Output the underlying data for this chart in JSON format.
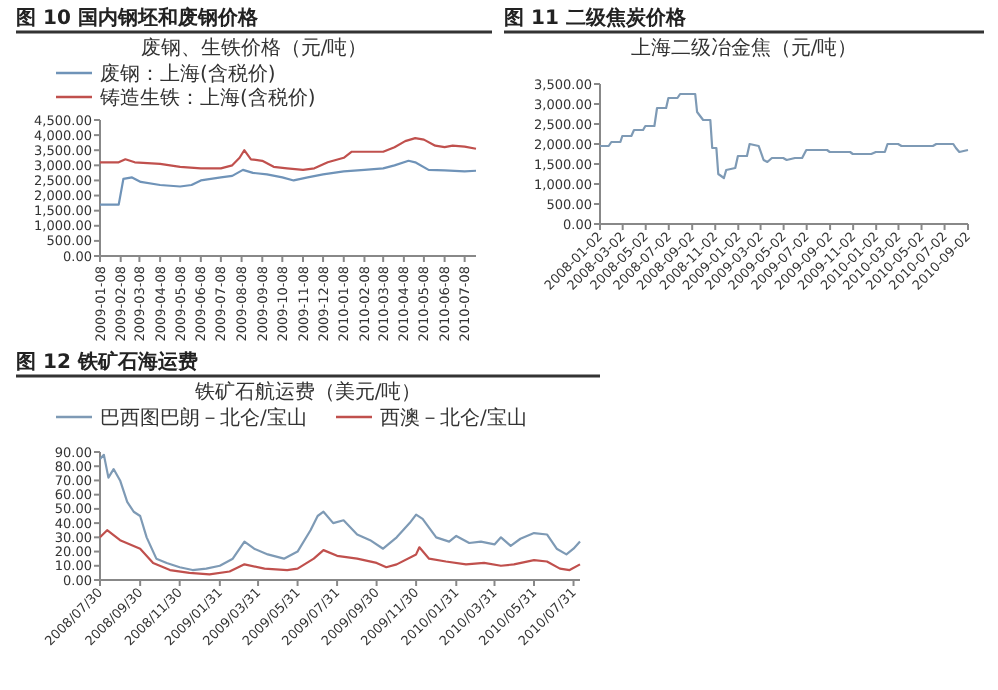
{
  "chart_data": [
    {
      "type": "line",
      "title": "图 10 国内钢坯和废钢价格",
      "subtitle": "废钢、生铁价格（元/吨）",
      "legend": "top",
      "grid": false,
      "xlim": [
        "2009-01-08",
        "2010-07-25"
      ],
      "xticks": [
        {
          "value": "2009-01-08",
          "label": "2009-01-08"
        },
        {
          "value": "2009-02-08",
          "label": "2009-02-08"
        },
        {
          "value": "2009-03-08",
          "label": "2009-03-08"
        },
        {
          "value": "2009-04-08",
          "label": "2009-04-08"
        },
        {
          "value": "2009-05-08",
          "label": "2009-05-08"
        },
        {
          "value": "2009-06-08",
          "label": "2009-06-08"
        },
        {
          "value": "2009-07-08",
          "label": "2009-07-08"
        },
        {
          "value": "2009-08-08",
          "label": "2009-08-08"
        },
        {
          "value": "2009-09-08",
          "label": "2009-09-08"
        },
        {
          "value": "2009-10-08",
          "label": "2009-10-08"
        },
        {
          "value": "2009-11-08",
          "label": "2009-11-08"
        },
        {
          "value": "2009-12-08",
          "label": "2009-12-08"
        },
        {
          "value": "2010-01-08",
          "label": "2010-01-08"
        },
        {
          "value": "2010-02-08",
          "label": "2010-02-08"
        },
        {
          "value": "2010-03-08",
          "label": "2010-03-08"
        },
        {
          "value": "2010-04-08",
          "label": "2010-04-08"
        },
        {
          "value": "2010-05-08",
          "label": "2010-05-08"
        },
        {
          "value": "2010-06-08",
          "label": "2010-06-08"
        },
        {
          "value": "2010-07-08",
          "label": "2010-07-08"
        }
      ],
      "ylim": [
        0,
        4500
      ],
      "yticks": [
        {
          "value": 0,
          "label": "0.00"
        },
        {
          "value": 500,
          "label": "500.00"
        },
        {
          "value": 1000,
          "label": "1,000.00"
        },
        {
          "value": 1500,
          "label": "1,500.00"
        },
        {
          "value": 2000,
          "label": "2,000.00"
        },
        {
          "value": 2500,
          "label": "2,500.00"
        },
        {
          "value": 3000,
          "label": "3,000.00"
        },
        {
          "value": 3500,
          "label": "3,500.00"
        },
        {
          "value": 4000,
          "label": "4,000.00"
        },
        {
          "value": 4500,
          "label": "4,500.00"
        }
      ],
      "series": [
        {
          "name": "废钢：上海(含税价)",
          "color": "#6f93b8",
          "x": [
            "2009-01-08",
            "2009-02-05",
            "2009-02-12",
            "2009-02-25",
            "2009-03-10",
            "2009-04-08",
            "2009-05-08",
            "2009-05-25",
            "2009-06-08",
            "2009-07-08",
            "2009-07-25",
            "2009-08-10",
            "2009-08-25",
            "2009-09-15",
            "2009-10-08",
            "2009-10-25",
            "2009-11-15",
            "2009-12-08",
            "2010-01-08",
            "2010-02-08",
            "2010-03-08",
            "2010-03-25",
            "2010-04-15",
            "2010-04-25",
            "2010-05-15",
            "2010-06-08",
            "2010-07-08",
            "2010-07-25"
          ],
          "values": [
            1700,
            1700,
            2550,
            2600,
            2450,
            2350,
            2300,
            2350,
            2500,
            2600,
            2650,
            2850,
            2750,
            2700,
            2600,
            2500,
            2600,
            2700,
            2800,
            2850,
            2900,
            3000,
            3150,
            3100,
            2850,
            2830,
            2800,
            2820
          ]
        },
        {
          "name": "铸造生铁：上海(含税价)",
          "color": "#c0504d",
          "x": [
            "2009-01-08",
            "2009-02-05",
            "2009-02-15",
            "2009-03-01",
            "2009-04-08",
            "2009-05-08",
            "2009-06-08",
            "2009-07-08",
            "2009-07-25",
            "2009-08-05",
            "2009-08-12",
            "2009-08-22",
            "2009-09-08",
            "2009-09-25",
            "2009-10-15",
            "2009-11-08",
            "2009-11-25",
            "2009-12-15",
            "2010-01-08",
            "2010-01-20",
            "2010-02-08",
            "2010-03-08",
            "2010-03-25",
            "2010-04-10",
            "2010-04-25",
            "2010-05-08",
            "2010-05-25",
            "2010-06-08",
            "2010-06-20",
            "2010-07-08",
            "2010-07-25"
          ],
          "values": [
            3100,
            3100,
            3200,
            3100,
            3050,
            2950,
            2900,
            2900,
            3000,
            3250,
            3500,
            3200,
            3150,
            2950,
            2900,
            2850,
            2900,
            3100,
            3250,
            3450,
            3450,
            3450,
            3600,
            3800,
            3900,
            3850,
            3650,
            3600,
            3650,
            3620,
            3550
          ]
        }
      ]
    },
    {
      "type": "line",
      "title": "图 11 二级焦炭价格",
      "subtitle": "上海二级冶金焦（元/吨）",
      "grid": false,
      "xlim": [
        "2008-01-02",
        "2010-09-02"
      ],
      "xticks": [
        {
          "value": "2008-01-02",
          "label": "2008-01-02"
        },
        {
          "value": "2008-03-02",
          "label": "2008-03-02"
        },
        {
          "value": "2008-05-02",
          "label": "2008-05-02"
        },
        {
          "value": "2008-07-02",
          "label": "2008-07-02"
        },
        {
          "value": "2008-09-02",
          "label": "2008-09-02"
        },
        {
          "value": "2008-11-02",
          "label": "2008-11-02"
        },
        {
          "value": "2009-01-02",
          "label": "2009-01-02"
        },
        {
          "value": "2009-03-02",
          "label": "2009-03-02"
        },
        {
          "value": "2009-05-02",
          "label": "2009-05-02"
        },
        {
          "value": "2009-07-02",
          "label": "2009-07-02"
        },
        {
          "value": "2009-09-02",
          "label": "2009-09-02"
        },
        {
          "value": "2009-11-02",
          "label": "2009-11-02"
        },
        {
          "value": "2010-01-02",
          "label": "2010-01-02"
        },
        {
          "value": "2010-03-02",
          "label": "2010-03-02"
        },
        {
          "value": "2010-05-02",
          "label": "2010-05-02"
        },
        {
          "value": "2010-07-02",
          "label": "2010-07-02"
        },
        {
          "value": "2010-09-02",
          "label": "2010-09-02"
        }
      ],
      "ylim": [
        0,
        3500
      ],
      "yticks": [
        {
          "value": 0,
          "label": "0.00"
        },
        {
          "value": 500,
          "label": "500.00"
        },
        {
          "value": 1000,
          "label": "1,000.00"
        },
        {
          "value": 1500,
          "label": "1,500.00"
        },
        {
          "value": 2000,
          "label": "2,000.00"
        },
        {
          "value": 2500,
          "label": "2,500.00"
        },
        {
          "value": 3000,
          "label": "3,000.00"
        },
        {
          "value": 3500,
          "label": "3,500.00"
        }
      ],
      "series": [
        {
          "color": "#7e9ab5",
          "x": [
            "2008-01-02",
            "2008-01-25",
            "2008-02-01",
            "2008-02-25",
            "2008-03-01",
            "2008-03-25",
            "2008-04-01",
            "2008-04-25",
            "2008-05-01",
            "2008-05-25",
            "2008-06-01",
            "2008-06-25",
            "2008-07-01",
            "2008-07-25",
            "2008-08-01",
            "2008-09-10",
            "2008-09-15",
            "2008-10-01",
            "2008-10-20",
            "2008-10-25",
            "2008-11-05",
            "2008-11-10",
            "2008-11-25",
            "2008-12-01",
            "2008-12-25",
            "2009-01-01",
            "2009-01-25",
            "2009-02-01",
            "2009-02-25",
            "2009-03-10",
            "2009-03-20",
            "2009-04-01",
            "2009-05-01",
            "2009-05-10",
            "2009-06-01",
            "2009-06-20",
            "2009-07-01",
            "2009-08-25",
            "2009-09-01",
            "2009-10-25",
            "2009-11-01",
            "2009-12-20",
            "2010-01-01",
            "2010-01-25",
            "2010-02-01",
            "2010-03-01",
            "2010-03-10",
            "2010-06-01",
            "2010-06-10",
            "2010-07-25",
            "2010-08-01",
            "2010-08-10",
            "2010-09-02"
          ],
          "values": [
            1950,
            1950,
            2050,
            2050,
            2200,
            2200,
            2350,
            2350,
            2450,
            2450,
            2900,
            2900,
            3150,
            3150,
            3250,
            3250,
            2800,
            2600,
            2600,
            1900,
            1900,
            1250,
            1150,
            1350,
            1400,
            1700,
            1700,
            2000,
            1950,
            1600,
            1550,
            1650,
            1650,
            1600,
            1650,
            1650,
            1850,
            1850,
            1800,
            1800,
            1750,
            1750,
            1800,
            1800,
            2000,
            2000,
            1950,
            1950,
            2000,
            2000,
            1900,
            1800,
            1850
          ]
        }
      ]
    },
    {
      "type": "line",
      "title": "图 12 铁矿石海运费",
      "subtitle": "铁矿石航运费（美元/吨）",
      "legend": "top",
      "grid": false,
      "xlim": [
        "2008-07-30",
        "2010-08-10"
      ],
      "xticks": [
        {
          "value": "2008-07-30",
          "label": "2008/07/30"
        },
        {
          "value": "2008-09-30",
          "label": "2008/09/30"
        },
        {
          "value": "2008-11-30",
          "label": "2008/11/30"
        },
        {
          "value": "2009-01-31",
          "label": "2009/01/31"
        },
        {
          "value": "2009-03-31",
          "label": "2009/03/31"
        },
        {
          "value": "2009-05-31",
          "label": "2009/05/31"
        },
        {
          "value": "2009-07-31",
          "label": "2009/07/31"
        },
        {
          "value": "2009-09-30",
          "label": "2009/09/30"
        },
        {
          "value": "2009-11-30",
          "label": "2009/11/30"
        },
        {
          "value": "2010-01-31",
          "label": "2010/01/31"
        },
        {
          "value": "2010-03-31",
          "label": "2010/03/31"
        },
        {
          "value": "2010-05-31",
          "label": "2010/05/31"
        },
        {
          "value": "2010-07-31",
          "label": "2010/07/31"
        }
      ],
      "ylim": [
        0,
        90
      ],
      "yticks": [
        {
          "value": 0,
          "label": "0.00"
        },
        {
          "value": 10,
          "label": "10.00"
        },
        {
          "value": 20,
          "label": "20.00"
        },
        {
          "value": 30,
          "label": "30.00"
        },
        {
          "value": 40,
          "label": "40.00"
        },
        {
          "value": 50,
          "label": "50.00"
        },
        {
          "value": 60,
          "label": "60.00"
        },
        {
          "value": 70,
          "label": "70.00"
        },
        {
          "value": 80,
          "label": "80.00"
        },
        {
          "value": 90,
          "label": "90.00"
        }
      ],
      "series": [
        {
          "name": "巴西图巴朗－北仑/宝山",
          "color": "#7e9ab5",
          "x": [
            "2008-07-30",
            "2008-08-05",
            "2008-08-12",
            "2008-08-20",
            "2008-08-30",
            "2008-09-10",
            "2008-09-20",
            "2008-09-30",
            "2008-10-10",
            "2008-10-25",
            "2008-11-10",
            "2008-11-30",
            "2008-12-20",
            "2009-01-10",
            "2009-01-31",
            "2009-02-20",
            "2009-03-10",
            "2009-03-25",
            "2009-04-15",
            "2009-05-10",
            "2009-05-31",
            "2009-06-20",
            "2009-07-01",
            "2009-07-10",
            "2009-07-25",
            "2009-08-10",
            "2009-08-31",
            "2009-09-20",
            "2009-10-10",
            "2009-10-31",
            "2009-11-20",
            "2009-11-30",
            "2009-12-10",
            "2009-12-31",
            "2010-01-20",
            "2010-01-31",
            "2010-02-20",
            "2010-03-10",
            "2010-03-31",
            "2010-04-10",
            "2010-04-25",
            "2010-05-10",
            "2010-05-31",
            "2010-06-20",
            "2010-07-05",
            "2010-07-20",
            "2010-07-31",
            "2010-08-10"
          ],
          "values": [
            85,
            88,
            72,
            78,
            70,
            55,
            48,
            45,
            30,
            15,
            12,
            9,
            7,
            8,
            10,
            15,
            27,
            22,
            18,
            15,
            20,
            35,
            45,
            48,
            40,
            42,
            32,
            28,
            22,
            30,
            40,
            46,
            43,
            30,
            27,
            31,
            26,
            27,
            25,
            30,
            24,
            29,
            33,
            32,
            22,
            18,
            22,
            27
          ]
        },
        {
          "name": "西澳－北仑/宝山",
          "color": "#c0504d",
          "x": [
            "2008-07-30",
            "2008-08-10",
            "2008-08-30",
            "2008-09-30",
            "2008-10-20",
            "2008-11-15",
            "2008-12-15",
            "2009-01-15",
            "2009-02-15",
            "2009-03-10",
            "2009-04-10",
            "2009-05-15",
            "2009-05-31",
            "2009-06-25",
            "2009-07-10",
            "2009-07-31",
            "2009-08-31",
            "2009-09-30",
            "2009-10-15",
            "2009-10-31",
            "2009-11-30",
            "2009-12-05",
            "2009-12-20",
            "2010-01-15",
            "2010-02-15",
            "2010-03-15",
            "2010-04-10",
            "2010-04-30",
            "2010-05-31",
            "2010-06-20",
            "2010-07-10",
            "2010-07-25",
            "2010-08-10"
          ],
          "values": [
            30,
            35,
            28,
            22,
            12,
            7,
            5,
            4,
            6,
            11,
            8,
            7,
            8,
            15,
            21,
            17,
            15,
            12,
            9,
            11,
            18,
            23,
            15,
            13,
            11,
            12,
            10,
            11,
            14,
            13,
            8,
            7,
            11
          ]
        }
      ]
    }
  ]
}
